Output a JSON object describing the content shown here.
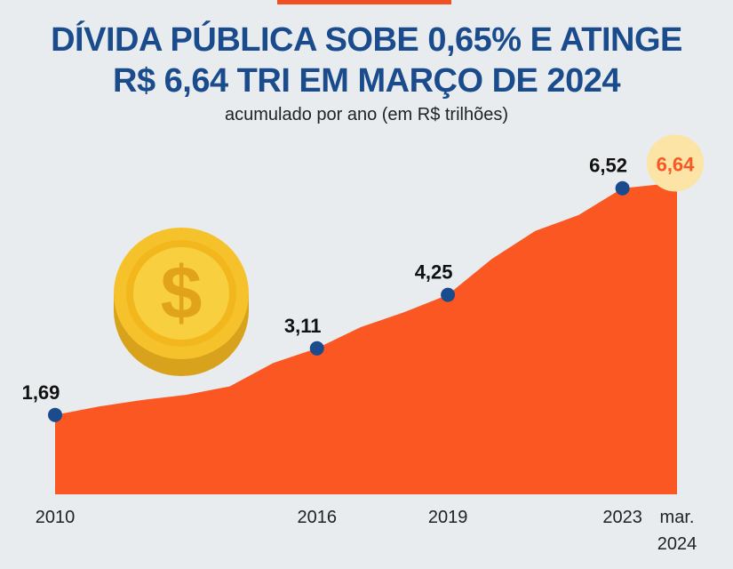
{
  "header": {
    "title_line1": "DÍVIDA PÚBLICA SOBE 0,65% E ATINGE",
    "title_line2": "R$ 6,64 TRI EM MARÇO DE 2024",
    "subtitle": "acumulado por ano (em R$ trilhões)"
  },
  "icons": {
    "coin": "dollar-coin-icon"
  },
  "colors": {
    "background": "#e8ecef",
    "area": "#fb5722",
    "marker": "#1a4b8c",
    "title": "#1a4b8c",
    "highlight_text": "#fb5722",
    "highlight_circle": "#fce3a6",
    "coin": "#f6c22c"
  },
  "chart_data": {
    "type": "area",
    "title": "DÍVIDA PÚBLICA SOBE 0,65% E ATINGE R$ 6,64 TRI EM MARÇO DE 2024",
    "ylabel": "acumulado por ano (em R$ trilhões)",
    "x": [
      2010,
      2011,
      2012,
      2013,
      2014,
      2015,
      2016,
      2017,
      2018,
      2019,
      2020,
      2021,
      2022,
      2023,
      2024.25
    ],
    "values": [
      1.69,
      1.87,
      2.01,
      2.12,
      2.3,
      2.8,
      3.11,
      3.56,
      3.88,
      4.25,
      5.01,
      5.61,
      5.95,
      6.52,
      6.64
    ],
    "ylim": [
      0,
      7.5
    ],
    "highlighted": [
      {
        "x": 2010,
        "value": 1.69,
        "label": "1,69"
      },
      {
        "x": 2016,
        "value": 3.11,
        "label": "3,11"
      },
      {
        "x": 2019,
        "value": 4.25,
        "label": "4,25"
      },
      {
        "x": 2023,
        "value": 6.52,
        "label": "6,52"
      },
      {
        "x": 2024.25,
        "value": 6.64,
        "label": "6,64",
        "emphasis": true
      }
    ],
    "x_ticks": [
      {
        "x": 2010,
        "label": "2010"
      },
      {
        "x": 2016,
        "label": "2016"
      },
      {
        "x": 2019,
        "label": "2019"
      },
      {
        "x": 2023,
        "label": "2023"
      },
      {
        "x": 2024.25,
        "label": "mar.",
        "label2": "2024"
      }
    ]
  }
}
